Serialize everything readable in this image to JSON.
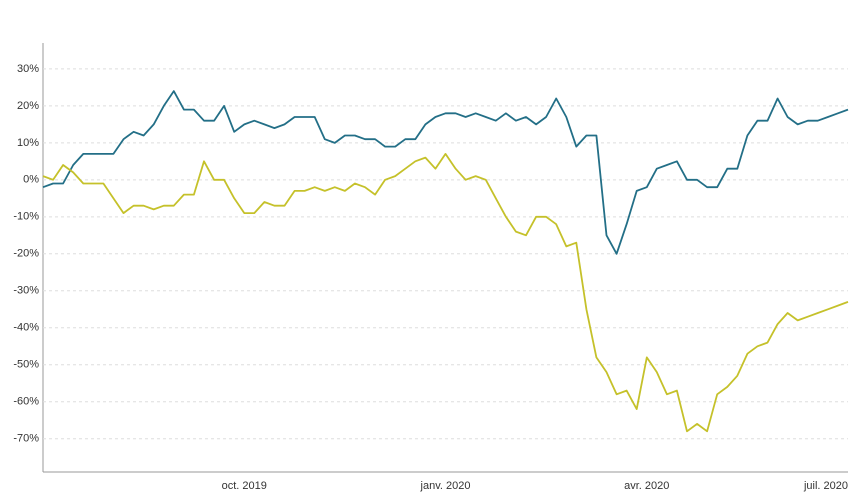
{
  "chart_data": {
    "type": "line",
    "categories": [
      null,
      null,
      null,
      null,
      null,
      null,
      null,
      null,
      null,
      null,
      null,
      null,
      null,
      null,
      null,
      null,
      null,
      null,
      null,
      null,
      "oct. 2019",
      null,
      null,
      null,
      null,
      null,
      null,
      null,
      null,
      null,
      null,
      null,
      null,
      null,
      null,
      null,
      null,
      null,
      null,
      null,
      "janv. 2020",
      null,
      null,
      null,
      null,
      null,
      null,
      null,
      null,
      null,
      null,
      null,
      null,
      null,
      null,
      null,
      null,
      null,
      null,
      null,
      "avr. 2020",
      null,
      null,
      null,
      null,
      null,
      null,
      null,
      null,
      null,
      null,
      null,
      null,
      null,
      null,
      null,
      null,
      null,
      null,
      null,
      "juil. 2020"
    ],
    "series": [
      {
        "color": "#236f87",
        "values": [
          -2,
          -1,
          -1,
          4,
          7,
          7,
          7,
          7,
          11,
          13,
          12,
          15,
          20,
          24,
          19,
          19,
          16,
          16,
          20,
          13,
          15,
          16,
          15,
          14,
          15,
          17,
          17,
          17,
          11,
          10,
          12,
          12,
          11,
          11,
          9,
          9,
          11,
          11,
          15,
          17,
          18,
          18,
          17,
          18,
          17,
          16,
          18,
          16,
          17,
          15,
          17,
          22,
          17,
          9,
          12,
          12,
          -15,
          -20,
          -12,
          -3,
          -2,
          3,
          4,
          5,
          0,
          0,
          -2,
          -2,
          3,
          3,
          12,
          16,
          16,
          22,
          17,
          15,
          16,
          16,
          17,
          18,
          19
        ]
      },
      {
        "color": "#c5c12a",
        "values": [
          1,
          0,
          4,
          2,
          -1,
          -1,
          -1,
          -5,
          -9,
          -7,
          -7,
          -8,
          -7,
          -7,
          -4,
          -4,
          5,
          0,
          0,
          -5,
          -9,
          -9,
          -6,
          -7,
          -7,
          -3,
          -3,
          -2,
          -3,
          -2,
          -3,
          -1,
          -2,
          -4,
          0,
          1,
          3,
          5,
          6,
          3,
          7,
          3,
          0,
          1,
          0,
          -5,
          -10,
          -14,
          -15,
          -10,
          -10,
          -12,
          -18,
          -17,
          -35,
          -48,
          -52,
          -58,
          -57,
          -62,
          -48,
          -52,
          -58,
          -57,
          -68,
          -66,
          -68,
          -58,
          -56,
          -53,
          -47,
          -45,
          -44,
          -39,
          -36,
          -38,
          -37,
          -36,
          -35,
          -34,
          -33
        ]
      }
    ],
    "ylim": [
      -79,
      37
    ],
    "yticks": [
      {
        "value": -70,
        "label": "-70%"
      },
      {
        "value": -60,
        "label": "-60%"
      },
      {
        "value": -50,
        "label": "-50%"
      },
      {
        "value": -40,
        "label": "-40%"
      },
      {
        "value": -30,
        "label": "-30%"
      },
      {
        "value": -20,
        "label": "-20%"
      },
      {
        "value": -10,
        "label": "-10%"
      },
      {
        "value": 0,
        "label": "0%"
      },
      {
        "value": 10,
        "label": "10%"
      },
      {
        "value": 20,
        "label": "20%"
      },
      {
        "value": 30,
        "label": "30%"
      }
    ],
    "grid": true
  }
}
